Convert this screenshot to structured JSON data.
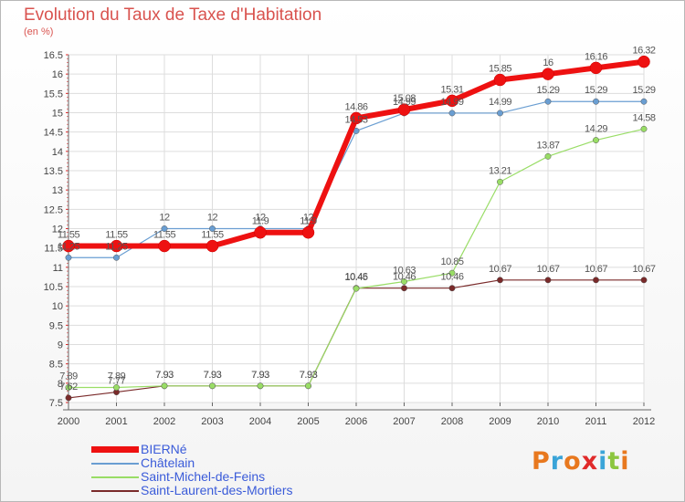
{
  "title": "Evolution du Taux de Taxe d'Habitation",
  "subtitle": "(en %)",
  "logo_text": "Proxiti",
  "logo_colors": [
    "#e8781e",
    "#3aa4d8",
    "#e8781e",
    "#e02a2a",
    "#3aa4d8",
    "#8cc63f",
    "#e8781e"
  ],
  "chart_data": {
    "type": "line",
    "title": "Evolution du Taux de Taxe d'Habitation",
    "ylabel": "(en %)",
    "x": [
      "2000",
      "2001",
      "2002",
      "2003",
      "2004",
      "2005",
      "2006",
      "2007",
      "2008",
      "2009",
      "2010",
      "2011",
      "2012"
    ],
    "ylim": [
      7.5,
      16.5
    ],
    "yticks": [
      7.5,
      8,
      8.5,
      9,
      9.5,
      10,
      10.5,
      11,
      11.5,
      12,
      12.5,
      13,
      13.5,
      14,
      14.5,
      15,
      15.5,
      16,
      16.5
    ],
    "grid": true,
    "legend_position": "bottom-left",
    "series": [
      {
        "name": "BIERNé",
        "color": "#ee1111",
        "values": [
          11.55,
          11.55,
          11.55,
          11.55,
          11.9,
          11.9,
          14.86,
          15.08,
          15.31,
          15.85,
          16.0,
          16.16,
          16.32
        ],
        "labels": [
          "11.55",
          "11.55",
          "11.55",
          "11.55",
          "11.9",
          "11.9",
          "14.86",
          "15.08",
          "15.31",
          "15.85",
          "16",
          "16.16",
          "16.32"
        ]
      },
      {
        "name": "Châtelain",
        "color": "#6a9ed2",
        "values": [
          11.25,
          11.25,
          12.0,
          12.0,
          12.0,
          12.0,
          14.53,
          14.99,
          14.99,
          14.99,
          15.29,
          15.29,
          15.29
        ],
        "labels": [
          "11.25",
          "11.25",
          "12",
          "12",
          "12",
          "12",
          "14.53",
          "14.99",
          "14.99",
          "14.99",
          "15.29",
          "15.29",
          "15.29"
        ]
      },
      {
        "name": "Saint-Michel-de-Feins",
        "color": "#99dd66",
        "values": [
          7.89,
          7.89,
          7.93,
          7.93,
          7.93,
          7.93,
          10.45,
          10.63,
          10.85,
          13.21,
          13.87,
          14.29,
          14.58
        ],
        "labels": [
          "7.89",
          "7.89",
          "7.93",
          "7.93",
          "7.93",
          "7.93",
          "10.45",
          "10.63",
          "10.85",
          "13.21",
          "13.87",
          "14.29",
          "14.58"
        ]
      },
      {
        "name": "Saint-Laurent-des-Mortiers",
        "color": "#7a2a2a",
        "values": [
          7.62,
          7.77,
          7.93,
          7.93,
          7.93,
          7.93,
          10.46,
          10.46,
          10.46,
          10.67,
          10.67,
          10.67,
          10.67
        ],
        "labels": [
          "7.62",
          "7.77",
          "7.93",
          "7.93",
          "7.93",
          "7.93",
          "10.46",
          "10.46",
          "10.46",
          "10.67",
          "10.67",
          "10.67",
          "10.67"
        ]
      }
    ]
  }
}
